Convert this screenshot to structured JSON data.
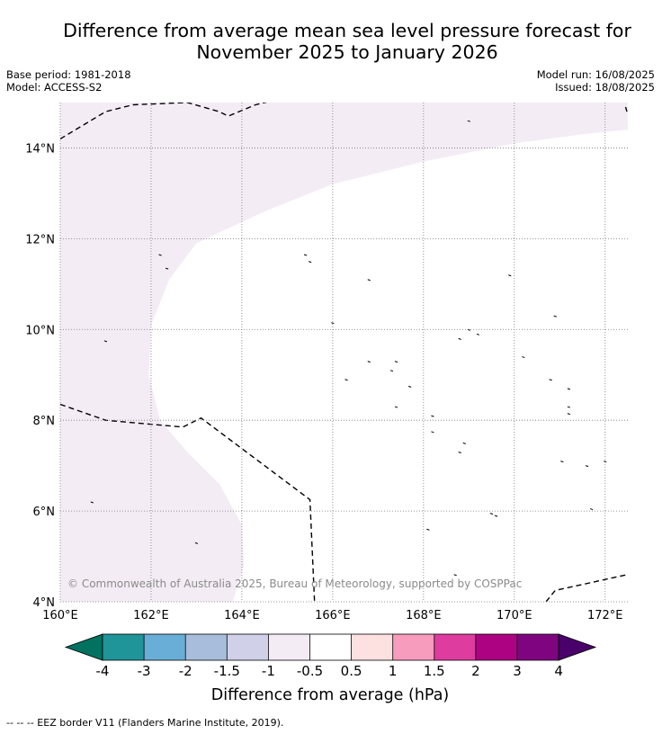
{
  "header": {
    "title_line1": "Difference from average mean sea level pressure forecast for",
    "title_line2": "November 2025 to January 2026",
    "base_period": "Base period: 1981-2018",
    "model": "Model: ACCESS-S2",
    "model_run": "Model run: 16/08/2025",
    "issued": "Issued: 18/08/2025"
  },
  "chart_data": {
    "type": "map",
    "xlabel": "",
    "ylabel": "",
    "xlim": [
      160,
      172.5
    ],
    "ylim": [
      4,
      15
    ],
    "x_ticks": [
      160,
      162,
      164,
      166,
      168,
      170,
      172
    ],
    "x_tick_labels": [
      "160°E",
      "162°E",
      "164°E",
      "166°E",
      "168°E",
      "170°E",
      "172°E"
    ],
    "y_ticks": [
      4,
      6,
      8,
      10,
      12,
      14
    ],
    "y_tick_labels": [
      "4°N",
      "6°N",
      "8°N",
      "10°N",
      "12°N",
      "14°N"
    ],
    "grid": true,
    "shaded_region": {
      "category": "-1 to -0.5 hPa",
      "color": "#f4ecf5",
      "boundary": [
        [
          160,
          15
        ],
        [
          172.5,
          15
        ],
        [
          172.5,
          14.4
        ],
        [
          171.5,
          14.3
        ],
        [
          170,
          14.1
        ],
        [
          168,
          13.7
        ],
        [
          166,
          13.2
        ],
        [
          164.5,
          12.6
        ],
        [
          163,
          11.9
        ],
        [
          162.4,
          11.1
        ],
        [
          162,
          10.1
        ],
        [
          161.95,
          9
        ],
        [
          162.2,
          8
        ],
        [
          162.8,
          7.3
        ],
        [
          163.5,
          6.6
        ],
        [
          164,
          5.7
        ],
        [
          164.05,
          4.8
        ],
        [
          163.8,
          4
        ],
        [
          160,
          4
        ]
      ],
      "unshaded_color": "#ffffff",
      "unshaded_category": "-0.5 to 0.5 hPa"
    },
    "eez_borders": [
      {
        "name": "eez-north",
        "points": [
          [
            160,
            14.2
          ],
          [
            161,
            14.8
          ],
          [
            161.6,
            14.95
          ],
          [
            162.8,
            15
          ],
          [
            163.5,
            14.8
          ],
          [
            163.7,
            14.7
          ],
          [
            164.3,
            14.95
          ],
          [
            164.7,
            15.05
          ]
        ]
      },
      {
        "name": "eez-west",
        "points": [
          [
            160,
            8.35
          ],
          [
            161,
            8
          ],
          [
            162.7,
            7.85
          ],
          [
            163.1,
            8.05
          ],
          [
            165.5,
            6.25
          ],
          [
            165.6,
            4
          ]
        ]
      },
      {
        "name": "eez-southeast",
        "points": [
          [
            170.7,
            4
          ],
          [
            170.9,
            4.25
          ],
          [
            172.5,
            4.6
          ]
        ]
      },
      {
        "name": "eez-northeast-edge",
        "points": [
          [
            172.45,
            14.9
          ],
          [
            172.48,
            14.8
          ]
        ]
      }
    ],
    "islands": [
      [
        161.0,
        9.75
      ],
      [
        160.7,
        6.2
      ],
      [
        162.2,
        11.65
      ],
      [
        162.35,
        11.35
      ],
      [
        163.0,
        5.3
      ],
      [
        165.4,
        11.65
      ],
      [
        165.5,
        11.5
      ],
      [
        166.0,
        10.15
      ],
      [
        166.8,
        11.1
      ],
      [
        169.0,
        14.6
      ],
      [
        169.9,
        11.2
      ],
      [
        170.9,
        10.3
      ],
      [
        169.0,
        10.0
      ],
      [
        168.8,
        9.8
      ],
      [
        169.2,
        9.9
      ],
      [
        170.2,
        9.4
      ],
      [
        167.4,
        9.3
      ],
      [
        166.8,
        9.3
      ],
      [
        167.3,
        9.1
      ],
      [
        166.3,
        8.9
      ],
      [
        167.7,
        8.75
      ],
      [
        167.4,
        8.3
      ],
      [
        170.8,
        8.9
      ],
      [
        171.2,
        8.7
      ],
      [
        171.2,
        8.3
      ],
      [
        171.2,
        8.15
      ],
      [
        168.2,
        8.1
      ],
      [
        168.2,
        7.75
      ],
      [
        168.9,
        7.5
      ],
      [
        168.8,
        7.3
      ],
      [
        171.05,
        7.1
      ],
      [
        171.6,
        7.0
      ],
      [
        172.0,
        7.1
      ],
      [
        171.7,
        6.05
      ],
      [
        169.6,
        5.9
      ],
      [
        169.5,
        5.95
      ],
      [
        168.1,
        5.6
      ],
      [
        168.7,
        4.6
      ]
    ],
    "copyright": "© Commonwealth of Australia 2025, Bureau of Meteorology, supported by COSPPac"
  },
  "colorbar": {
    "label": "Difference from average (hPa)",
    "tick_labels": [
      "-4",
      "-3",
      "-2",
      "-1.5",
      "-1",
      "-0.5",
      "0.5",
      "1",
      "1.5",
      "2",
      "3",
      "4"
    ],
    "under_color": "#00725f",
    "over_color": "#4a006a",
    "colors": [
      "#1f9499",
      "#69aed6",
      "#a8bddb",
      "#d0d0e9",
      "#f4ecf5",
      "#ffffff",
      "#fde1e1",
      "#f79cbc",
      "#de3c9f",
      "#ad0383",
      "#7f0580"
    ]
  },
  "footer": {
    "eez_legend": "--  --  -- EEZ border V11 (Flanders Marine Institute, 2019)."
  }
}
